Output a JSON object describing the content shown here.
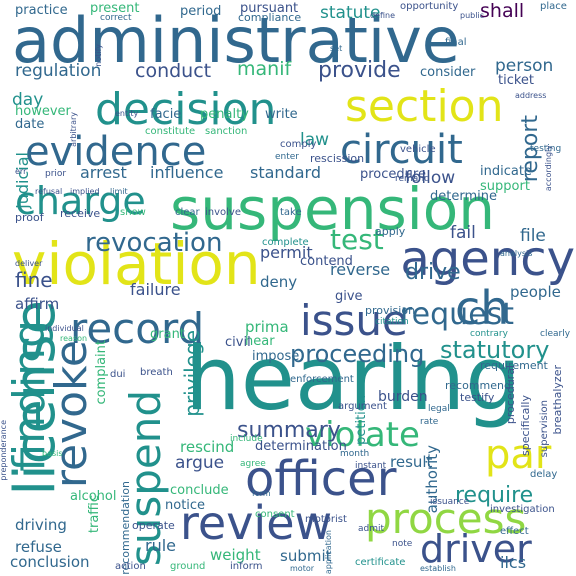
{
  "palette": {
    "deep_purple": "#440154",
    "indigo": "#3b528b",
    "blue": "#31688e",
    "teal": "#21918c",
    "green": "#35b779",
    "lime": "#90d743",
    "yellow": "#e2e418"
  },
  "words": [
    {
      "text": "administrative",
      "color": "#31688e"
    },
    {
      "text": "hearing",
      "color": "#21918c"
    },
    {
      "text": "suspension",
      "color": "#35b779"
    },
    {
      "text": "violation",
      "color": "#e2e418"
    },
    {
      "text": "license",
      "color": "#21918c"
    },
    {
      "text": "agency",
      "color": "#3b528b"
    },
    {
      "text": "decision",
      "color": "#21918c"
    },
    {
      "text": "section",
      "color": "#e2e418"
    },
    {
      "text": "evidence",
      "color": "#31688e"
    },
    {
      "text": "officer",
      "color": "#3b528b"
    },
    {
      "text": "review",
      "color": "#3b528b"
    },
    {
      "text": "circuit",
      "color": "#31688e"
    },
    {
      "text": "charge",
      "color": "#21918c"
    },
    {
      "text": "finding",
      "color": "#21918c"
    },
    {
      "text": "revoke",
      "color": "#31688e"
    },
    {
      "text": "suspend",
      "color": "#21918c"
    },
    {
      "text": "process",
      "color": "#90d743"
    },
    {
      "text": "issue",
      "color": "#3b528b"
    },
    {
      "text": "record",
      "color": "#31688e"
    },
    {
      "text": "ch",
      "color": "#31688e"
    },
    {
      "text": "driver",
      "color": "#3b528b"
    },
    {
      "text": "violate",
      "color": "#35b779"
    },
    {
      "text": "par",
      "color": "#e2e418"
    },
    {
      "text": "request",
      "color": "#31688e"
    },
    {
      "text": "revocation",
      "color": "#31688e"
    },
    {
      "text": "test",
      "color": "#35b779"
    },
    {
      "text": "report",
      "color": "#31688e"
    },
    {
      "text": "proceeding",
      "color": "#31688e"
    },
    {
      "text": "statutory",
      "color": "#21918c"
    },
    {
      "text": "summary",
      "color": "#3b528b"
    },
    {
      "text": "privilege",
      "color": "#21918c"
    },
    {
      "text": "require",
      "color": "#21918c"
    },
    {
      "text": "fine",
      "color": "#3b528b"
    },
    {
      "text": "drive",
      "color": "#31688e"
    },
    {
      "text": "provide",
      "color": "#3b528b"
    },
    {
      "text": "conduct",
      "color": "#3b528b"
    },
    {
      "text": "regulation",
      "color": "#31688e"
    },
    {
      "text": "shall",
      "color": "#440154"
    },
    {
      "text": "statute",
      "color": "#21918c"
    },
    {
      "text": "practice",
      "color": "#31688e"
    },
    {
      "text": "present",
      "color": "#35b779"
    },
    {
      "text": "period",
      "color": "#31688e"
    },
    {
      "text": "pursuant",
      "color": "#3b528b"
    },
    {
      "text": "compliance",
      "color": "#31688e"
    },
    {
      "text": "manif",
      "color": "#35b779"
    },
    {
      "text": "person",
      "color": "#31688e"
    },
    {
      "text": "ticket",
      "color": "#3b528b"
    },
    {
      "text": "consider",
      "color": "#31688e"
    },
    {
      "text": "day",
      "color": "#21918c"
    },
    {
      "text": "date",
      "color": "#31688e"
    },
    {
      "text": "however",
      "color": "#35b779"
    },
    {
      "text": "facie",
      "color": "#31688e"
    },
    {
      "text": "penalty",
      "color": "#35b779"
    },
    {
      "text": "write",
      "color": "#31688e"
    },
    {
      "text": "follow",
      "color": "#3b528b"
    },
    {
      "text": "indicate",
      "color": "#31688e"
    },
    {
      "text": "support",
      "color": "#35b779"
    },
    {
      "text": "law",
      "color": "#21918c"
    },
    {
      "text": "judicial",
      "color": "#21918c"
    },
    {
      "text": "arrest",
      "color": "#31688e"
    },
    {
      "text": "influence",
      "color": "#31688e"
    },
    {
      "text": "standard",
      "color": "#31688e"
    },
    {
      "text": "procedure",
      "color": "#3b528b"
    },
    {
      "text": "determine",
      "color": "#31688e"
    },
    {
      "text": "rescission",
      "color": "#3b528b"
    },
    {
      "text": "constitute",
      "color": "#35b779"
    },
    {
      "text": "sanction",
      "color": "#35b779"
    },
    {
      "text": "fail",
      "color": "#3b528b"
    },
    {
      "text": "file",
      "color": "#31688e"
    },
    {
      "text": "permit",
      "color": "#3b528b"
    },
    {
      "text": "contend",
      "color": "#3b528b"
    },
    {
      "text": "reverse",
      "color": "#31688e"
    },
    {
      "text": "failure",
      "color": "#3b528b"
    },
    {
      "text": "people",
      "color": "#31688e"
    },
    {
      "text": "deny",
      "color": "#31688e"
    },
    {
      "text": "affirm",
      "color": "#3b528b"
    },
    {
      "text": "prima",
      "color": "#35b779"
    },
    {
      "text": "hear",
      "color": "#35b779"
    },
    {
      "text": "give",
      "color": "#3b528b"
    },
    {
      "text": "provision",
      "color": "#31688e"
    },
    {
      "text": "grant",
      "color": "#35b779"
    },
    {
      "text": "civil",
      "color": "#3b528b"
    },
    {
      "text": "impose",
      "color": "#31688e"
    },
    {
      "text": "complaint",
      "color": "#35b779"
    },
    {
      "text": "argue",
      "color": "#3b528b"
    },
    {
      "text": "rescind",
      "color": "#35b779"
    },
    {
      "text": "determination",
      "color": "#3b528b"
    },
    {
      "text": "result",
      "color": "#31688e"
    },
    {
      "text": "authority",
      "color": "#31688e"
    },
    {
      "text": "burden",
      "color": "#3b528b"
    },
    {
      "text": "petition",
      "color": "#21918c"
    },
    {
      "text": "conclude",
      "color": "#35b779"
    },
    {
      "text": "notice",
      "color": "#31688e"
    },
    {
      "text": "alcohol",
      "color": "#35b779"
    },
    {
      "text": "driving",
      "color": "#31688e"
    },
    {
      "text": "refuse",
      "color": "#31688e"
    },
    {
      "text": "conclusion",
      "color": "#31688e"
    },
    {
      "text": "rule",
      "color": "#31688e"
    },
    {
      "text": "weight",
      "color": "#35b779"
    },
    {
      "text": "submit",
      "color": "#31688e"
    },
    {
      "text": "traffic",
      "color": "#35b779"
    },
    {
      "text": "recommendation",
      "color": "#31688e"
    },
    {
      "text": "operate",
      "color": "#3b528b"
    },
    {
      "text": "ilcs",
      "color": "#31688e"
    },
    {
      "text": "action",
      "color": "#3b528b"
    },
    {
      "text": "ground",
      "color": "#35b779"
    },
    {
      "text": "inform",
      "color": "#3b528b"
    },
    {
      "text": "consent",
      "color": "#35b779"
    },
    {
      "text": "motorist",
      "color": "#3b528b"
    },
    {
      "text": "certificate",
      "color": "#21918c"
    },
    {
      "text": "recommend",
      "color": "#31688e"
    },
    {
      "text": "testify",
      "color": "#3b528b"
    },
    {
      "text": "requirement",
      "color": "#31688e"
    },
    {
      "text": "procedural",
      "color": "#3b528b"
    },
    {
      "text": "specifically",
      "color": "#3b528b"
    },
    {
      "text": "breathalyzer",
      "color": "#3b528b"
    },
    {
      "text": "supervision",
      "color": "#3b528b"
    },
    {
      "text": "investigation",
      "color": "#3b528b"
    },
    {
      "text": "effect",
      "color": "#31688e"
    },
    {
      "text": "delay",
      "color": "#31688e"
    },
    {
      "text": "dui",
      "color": "#3b528b"
    },
    {
      "text": "breath",
      "color": "#3b528b"
    },
    {
      "text": "enforcement",
      "color": "#31688e"
    },
    {
      "text": "argument",
      "color": "#3b528b"
    },
    {
      "text": "receive",
      "color": "#3b528b"
    },
    {
      "text": "show",
      "color": "#35b779"
    },
    {
      "text": "clear",
      "color": "#31688e"
    },
    {
      "text": "involve",
      "color": "#3b528b"
    },
    {
      "text": "take",
      "color": "#31688e"
    },
    {
      "text": "proof",
      "color": "#3b528b"
    },
    {
      "text": "apply",
      "color": "#31688e"
    },
    {
      "text": "complete",
      "color": "#21918c"
    },
    {
      "text": "opportunity",
      "color": "#3b528b"
    },
    {
      "text": "correct",
      "color": "#31688e"
    },
    {
      "text": "place",
      "color": "#31688e"
    },
    {
      "text": "final",
      "color": "#31688e"
    },
    {
      "text": "comply",
      "color": "#3b528b"
    },
    {
      "text": "enter",
      "color": "#31688e"
    },
    {
      "text": "vehicle",
      "color": "#3b528b"
    },
    {
      "text": "testing",
      "color": "#31688e"
    },
    {
      "text": "remand",
      "color": "#3b528b"
    },
    {
      "text": "prior",
      "color": "#3b528b"
    },
    {
      "text": "err",
      "color": "#3b528b"
    },
    {
      "text": "deliver",
      "color": "#3b528b"
    },
    {
      "text": "individual",
      "color": "#3b528b"
    },
    {
      "text": "citation",
      "color": "#21918c"
    },
    {
      "text": "month",
      "color": "#31688e"
    },
    {
      "text": "instant",
      "color": "#3b528b"
    },
    {
      "text": "agree",
      "color": "#35b779"
    },
    {
      "text": "note",
      "color": "#3b528b"
    },
    {
      "text": "admit",
      "color": "#3b528b"
    },
    {
      "text": "issuance",
      "color": "#3b528b"
    },
    {
      "text": "legal",
      "color": "#31688e"
    },
    {
      "text": "rate",
      "color": "#31688e"
    },
    {
      "text": "set",
      "color": "#31688e"
    },
    {
      "text": "notify",
      "color": "#3b528b"
    },
    {
      "text": "entity",
      "color": "#3b528b"
    },
    {
      "text": "include",
      "color": "#35b779"
    },
    {
      "text": "contrary",
      "color": "#21918c"
    },
    {
      "text": "clearly",
      "color": "#31688e"
    },
    {
      "text": "address",
      "color": "#3b528b"
    },
    {
      "text": "accordingly",
      "color": "#3b528b"
    },
    {
      "text": "arbitrary",
      "color": "#3b528b"
    },
    {
      "text": "preponderance",
      "color": "#3b528b"
    },
    {
      "text": "basis",
      "color": "#35b779"
    },
    {
      "text": "form",
      "color": "#31688e"
    },
    {
      "text": "reason",
      "color": "#35b779"
    },
    {
      "text": "refusal",
      "color": "#3b528b"
    },
    {
      "text": "implied",
      "color": "#3b528b"
    },
    {
      "text": "limit",
      "color": "#31688e"
    },
    {
      "text": "analysis",
      "color": "#31688e"
    },
    {
      "text": "motor",
      "color": "#31688e"
    },
    {
      "text": "establish",
      "color": "#31688e"
    },
    {
      "text": "application",
      "color": "#31688e"
    },
    {
      "text": "public",
      "color": "#3b528b"
    },
    {
      "text": "define",
      "color": "#3b528b"
    }
  ]
}
